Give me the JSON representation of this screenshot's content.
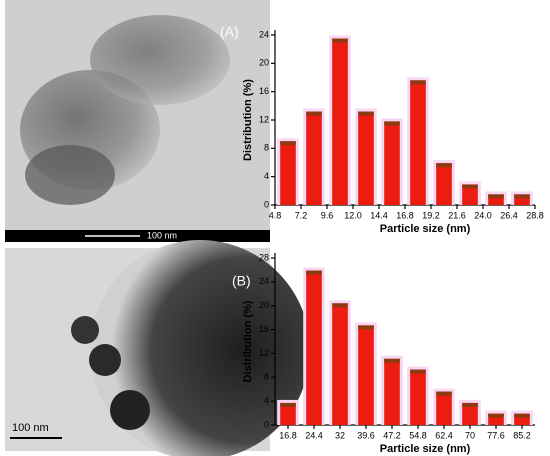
{
  "images": [
    {
      "label": "(A)",
      "scale_bar": "100 nm"
    },
    {
      "label": "(B)",
      "scale_bar": "100 nm"
    }
  ],
  "chart_data": [
    {
      "type": "histogram",
      "xlabel": "Particle size (nm)",
      "ylabel": "Distribution (%)",
      "color": "#ec1c0e",
      "cap_color": "#8b3a12",
      "bins": [
        4.8,
        7.2,
        9.6,
        12.0,
        14.4,
        16.8,
        19.2,
        21.6,
        24.0,
        26.4,
        28.8
      ],
      "values": [
        9.0,
        13.2,
        23.5,
        13.2,
        11.8,
        17.6,
        5.9,
        2.9,
        1.5,
        1.5
      ],
      "xlim": [
        4.8,
        28.8
      ],
      "xticks": [
        4.8,
        7.2,
        9.6,
        {
          "value": 12,
          "label": "12.0"
        },
        14.4,
        16.8,
        19.2,
        21.6,
        {
          "value": 24,
          "label": "24.0"
        },
        26.4,
        28.8
      ],
      "ylim": [
        0,
        24
      ],
      "yticks": [
        0,
        4,
        8,
        12,
        16,
        20,
        24
      ]
    },
    {
      "type": "bar",
      "xlabel": "Particle size (nm)",
      "ylabel": "Distribution (%)",
      "color": "#ec1c0e",
      "cap_color": "#8b3a12",
      "categories": [
        "16.8",
        "24.4",
        "32",
        "39.6",
        "47.2",
        "54.8",
        "62.4",
        "70",
        "77.6",
        "85.2"
      ],
      "values": [
        3.7,
        25.9,
        20.4,
        16.7,
        11.1,
        9.3,
        5.6,
        3.7,
        1.9,
        1.9
      ],
      "ylim": [
        0,
        28
      ],
      "yticks": [
        0,
        4,
        8,
        12,
        16,
        20,
        24,
        28
      ]
    }
  ]
}
